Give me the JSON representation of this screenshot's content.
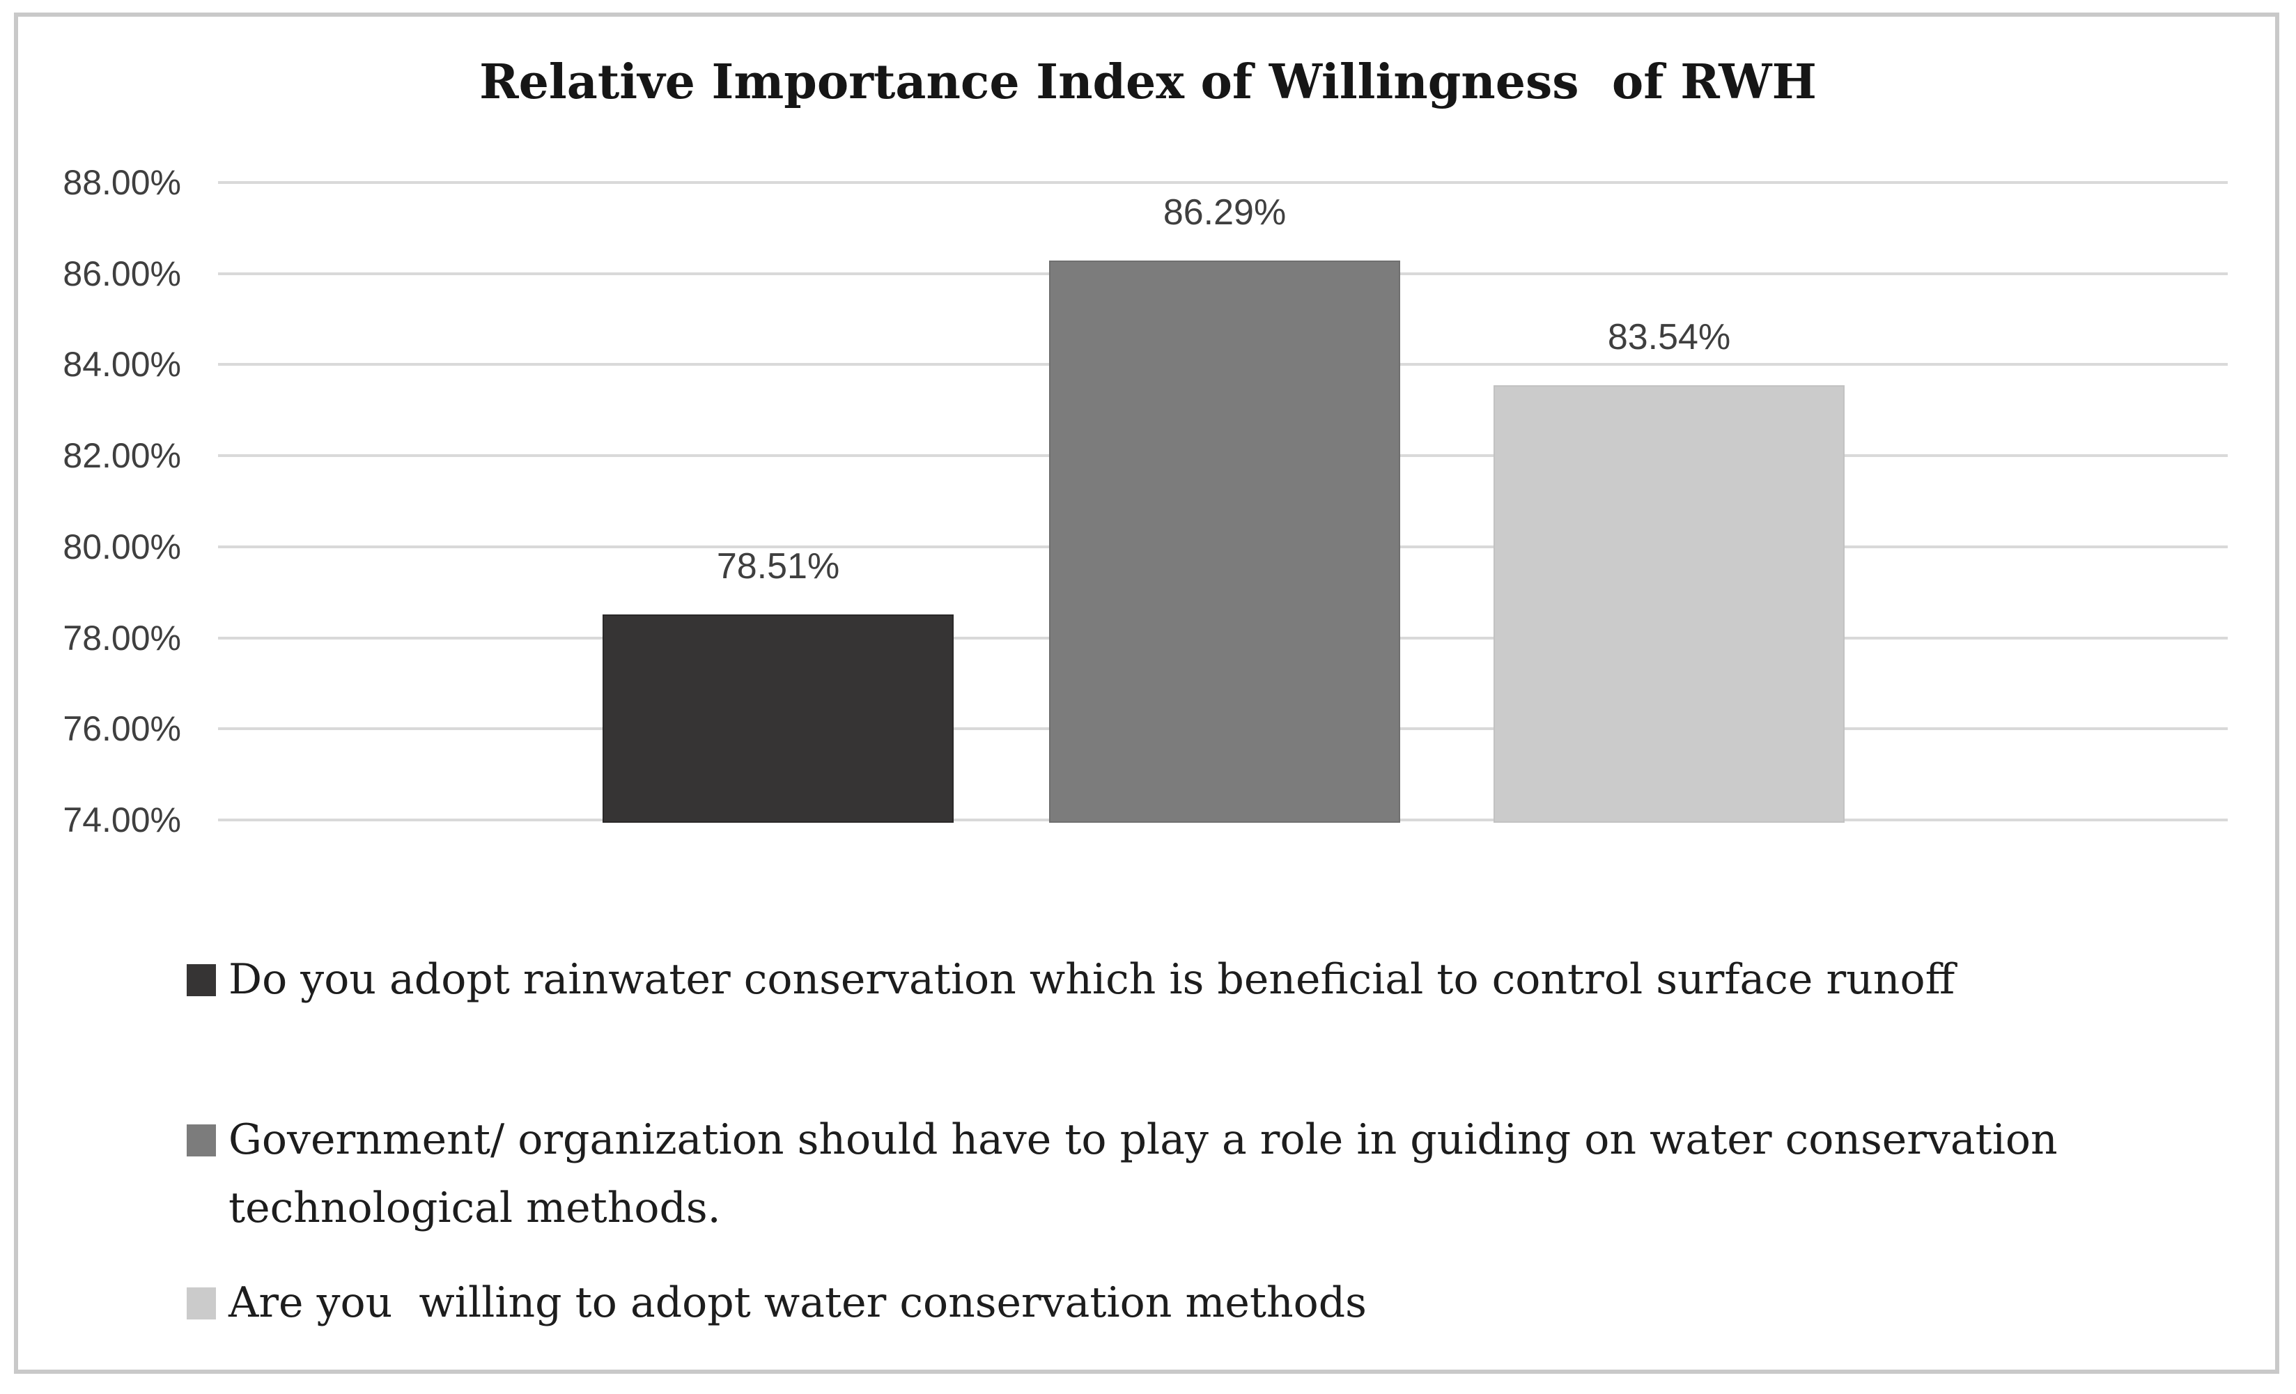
{
  "chart_data": {
    "type": "bar",
    "title": "Relative Importance Index of Willingness  of RWH",
    "categories": [
      "Do you adopt rainwater conservation which is beneficial to control surface runoff",
      "Government/ organization should have to play a role in guiding on water conservation technological methods.",
      "Are you  willing to adopt water conservation methods"
    ],
    "values": [
      78.51,
      86.29,
      83.54
    ],
    "value_labels": [
      "78.51%",
      "86.29%",
      "83.54%"
    ],
    "series_colors": [
      "#363434",
      "#7c7c7c",
      "#cbcbcb"
    ],
    "series_border_colors": [
      "#2a2828",
      "#6f6f6f",
      "#c2c2c2"
    ],
    "xlabel": "",
    "ylabel": "",
    "ylim": [
      74,
      88
    ],
    "y_tick_step": 2,
    "y_tick_labels": [
      "88.00%",
      "86.00%",
      "84.00%",
      "82.00%",
      "80.00%",
      "78.00%",
      "76.00%",
      "74.00%"
    ],
    "grid": true,
    "gridline_color": "#d9d9d9",
    "legend_position": "bottom"
  },
  "legend": {
    "items": [
      {
        "label": "Do you adopt rainwater conservation which is beneficial to control surface runoff",
        "color": "#363434"
      },
      {
        "label": "Government/ organization should have to play a role in guiding on water conservation\ntechnological methods.",
        "color": "#7c7c7c"
      },
      {
        "label": "Are you  willing to adopt water conservation methods",
        "color": "#cbcbcb"
      }
    ]
  },
  "frame": {
    "border_color": "#c9c9c9",
    "background": "#ffffff"
  }
}
